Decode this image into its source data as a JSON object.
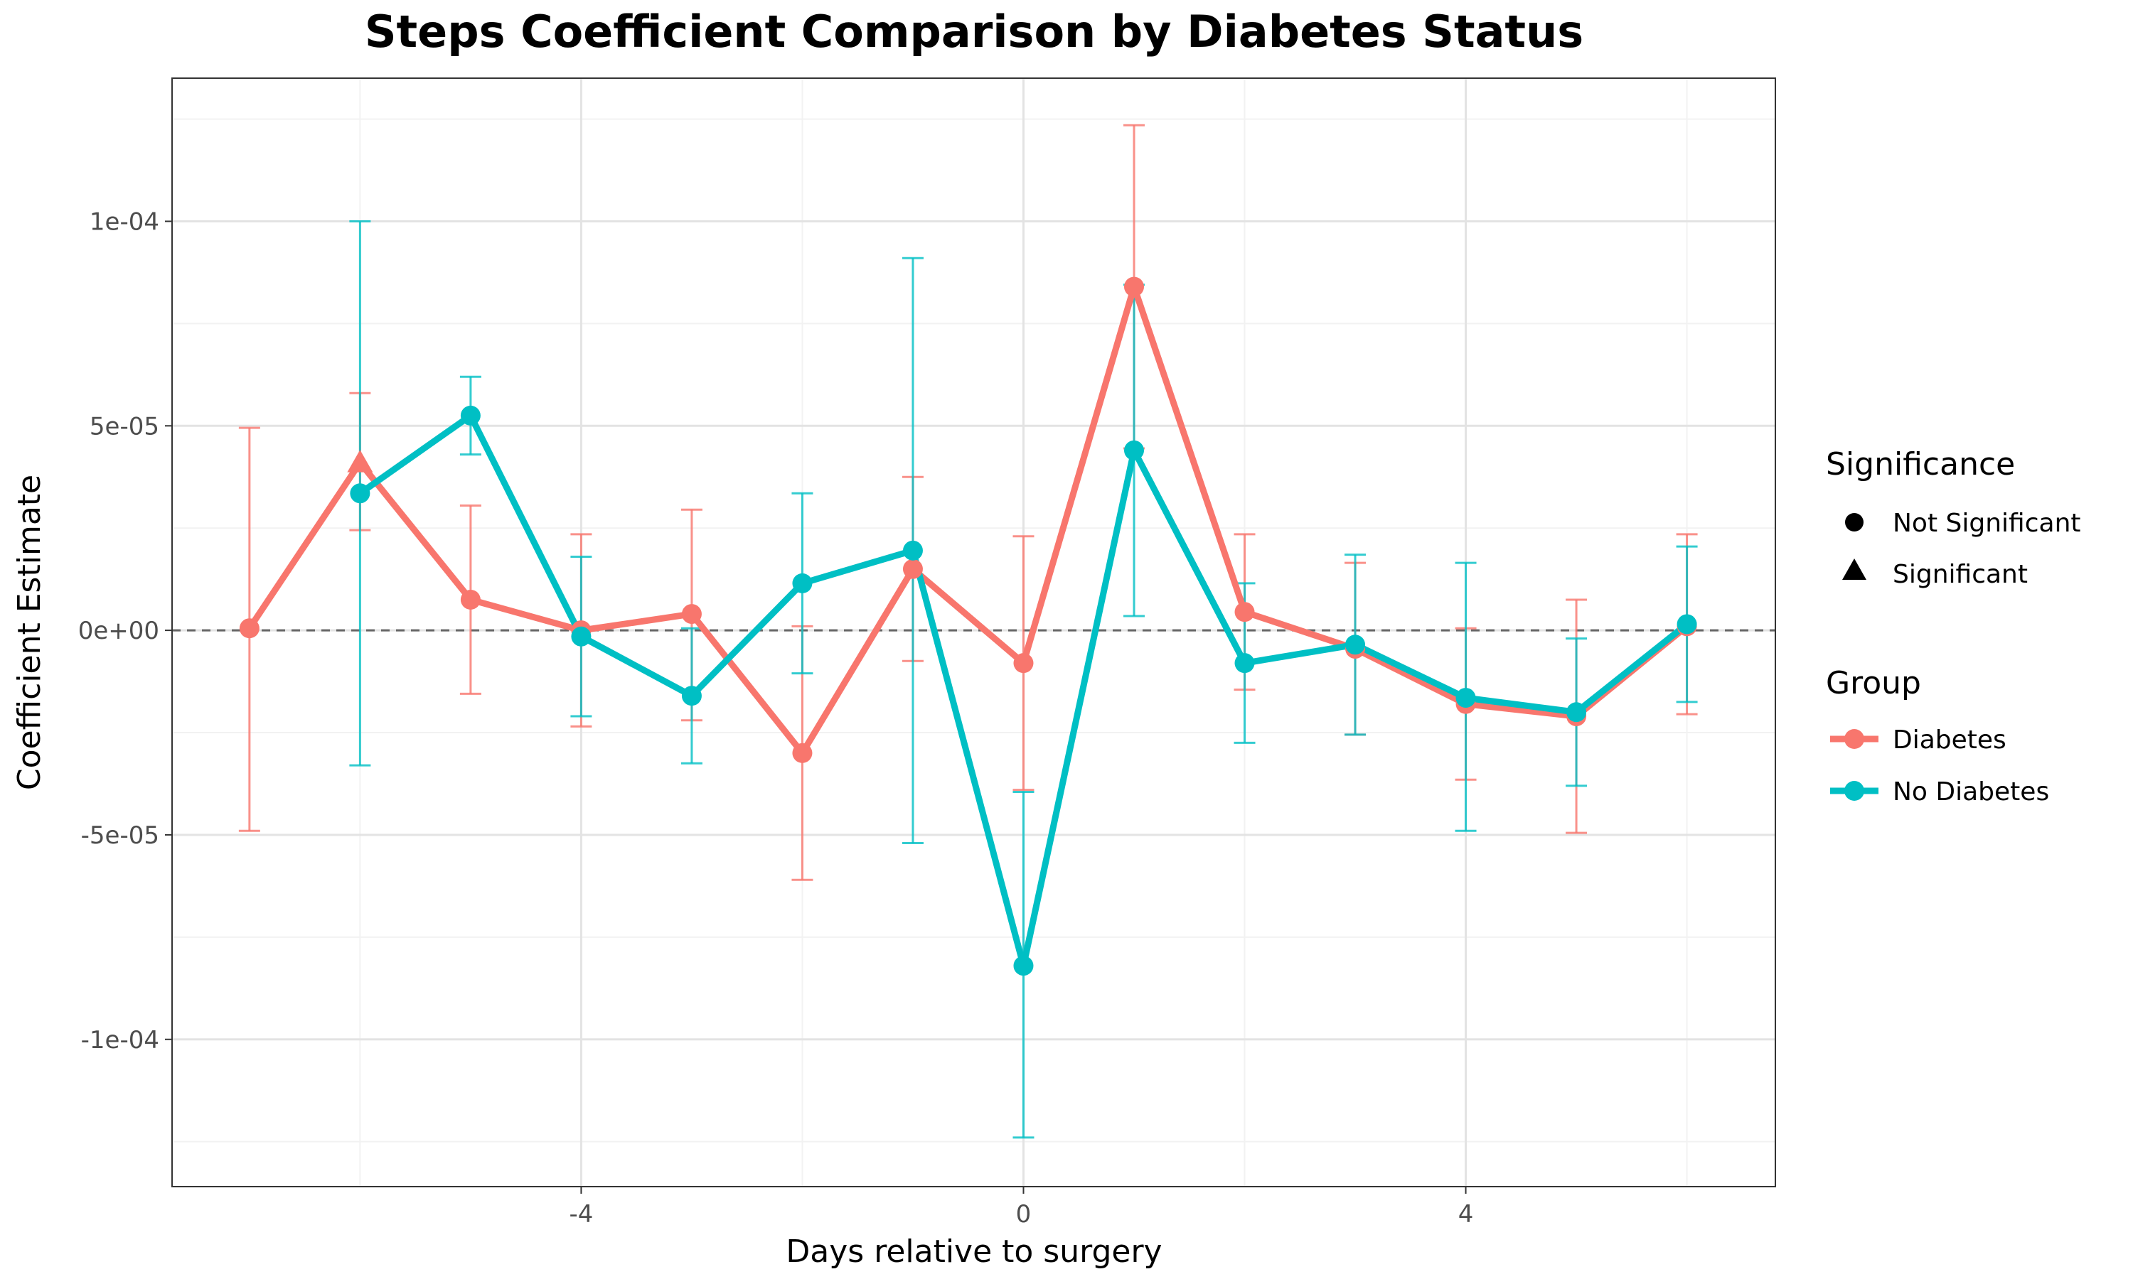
{
  "chart_data": {
    "type": "line",
    "title": "Steps Coefficient Comparison by Diabetes Status",
    "xlabel": "Days relative to surgery",
    "ylabel": "Coefficient Estimate",
    "xlim": [
      -7.7,
      6.8
    ],
    "ylim": [
      -0.000136,
      0.000135
    ],
    "x_ticks": [
      -4,
      0,
      4
    ],
    "x_tick_labels": [
      "-4",
      "0",
      "4"
    ],
    "y_ticks": [
      -0.0001,
      -5e-05,
      0,
      5e-05,
      0.0001
    ],
    "y_tick_labels": [
      "-1e-04",
      "-5e-05",
      "0e+00",
      "5e-05",
      "1e-04"
    ],
    "reference_line": {
      "y": 0,
      "style": "dashed"
    },
    "grid": true,
    "series": [
      {
        "name": "Diabetes",
        "color": "#F8766D",
        "points": [
          {
            "x": -7,
            "y": 5e-07,
            "lower": -4.9e-05,
            "upper": 4.95e-05,
            "significant": false
          },
          {
            "x": -6,
            "y": 4.1e-05,
            "lower": 2.45e-05,
            "upper": 5.8e-05,
            "significant": true
          },
          {
            "x": -5,
            "y": 7.5e-06,
            "lower": -1.55e-05,
            "upper": 3.05e-05,
            "significant": false
          },
          {
            "x": -4,
            "y": 0.0,
            "lower": -2.35e-05,
            "upper": 2.35e-05,
            "significant": false
          },
          {
            "x": -3,
            "y": 4e-06,
            "lower": -2.2e-05,
            "upper": 2.95e-05,
            "significant": false
          },
          {
            "x": -2,
            "y": -3e-05,
            "lower": -6.1e-05,
            "upper": 1e-06,
            "significant": false
          },
          {
            "x": -1,
            "y": 1.5e-05,
            "lower": -7.5e-06,
            "upper": 3.75e-05,
            "significant": false
          },
          {
            "x": 0,
            "y": -8e-06,
            "lower": -3.9e-05,
            "upper": 2.3e-05,
            "significant": false
          },
          {
            "x": 1,
            "y": 8.4e-05,
            "lower": 4.45e-05,
            "upper": 0.0001235,
            "significant": false
          },
          {
            "x": 2,
            "y": 4.5e-06,
            "lower": -1.45e-05,
            "upper": 2.35e-05,
            "significant": false
          },
          {
            "x": 3,
            "y": -4.5e-06,
            "lower": -2.55e-05,
            "upper": 1.65e-05,
            "significant": false
          },
          {
            "x": 4,
            "y": -1.8e-05,
            "lower": -3.65e-05,
            "upper": 5e-07,
            "significant": false
          },
          {
            "x": 5,
            "y": -2.1e-05,
            "lower": -4.95e-05,
            "upper": 7.5e-06,
            "significant": false
          },
          {
            "x": 6,
            "y": 1e-06,
            "lower": -2.05e-05,
            "upper": 2.35e-05,
            "significant": false
          }
        ]
      },
      {
        "name": "No Diabetes",
        "color": "#00BFC4",
        "points": [
          {
            "x": -6,
            "y": 3.35e-05,
            "lower": -3.3e-05,
            "upper": 0.0001,
            "significant": false
          },
          {
            "x": -5,
            "y": 5.25e-05,
            "lower": 4.3e-05,
            "upper": 6.2e-05,
            "significant": false
          },
          {
            "x": -4,
            "y": -1.5e-06,
            "lower": -2.1e-05,
            "upper": 1.8e-05,
            "significant": false
          },
          {
            "x": -3,
            "y": -1.6e-05,
            "lower": -3.25e-05,
            "upper": 5e-07,
            "significant": false
          },
          {
            "x": -2,
            "y": 1.15e-05,
            "lower": -1.05e-05,
            "upper": 3.35e-05,
            "significant": false
          },
          {
            "x": -1,
            "y": 1.95e-05,
            "lower": -5.2e-05,
            "upper": 9.1e-05,
            "significant": false
          },
          {
            "x": 0,
            "y": -8.2e-05,
            "lower": -0.000124,
            "upper": -3.95e-05,
            "significant": false
          },
          {
            "x": 1,
            "y": 4.4e-05,
            "lower": 3.5e-06,
            "upper": 8.45e-05,
            "significant": false
          },
          {
            "x": 2,
            "y": -8e-06,
            "lower": -2.75e-05,
            "upper": 1.15e-05,
            "significant": false
          },
          {
            "x": 3,
            "y": -3.5e-06,
            "lower": -2.55e-05,
            "upper": 1.85e-05,
            "significant": false
          },
          {
            "x": 4,
            "y": -1.65e-05,
            "lower": -4.9e-05,
            "upper": 1.65e-05,
            "significant": false
          },
          {
            "x": 5,
            "y": -2e-05,
            "lower": -3.8e-05,
            "upper": -2e-06,
            "significant": false
          },
          {
            "x": 6,
            "y": 1.5e-06,
            "lower": -1.75e-05,
            "upper": 2.05e-05,
            "significant": false
          }
        ]
      }
    ],
    "legend": {
      "placement": "right",
      "significance": {
        "title": "Significance",
        "items": [
          {
            "label": "Not Significant",
            "shape": "circle"
          },
          {
            "label": "Significant",
            "shape": "triangle"
          }
        ]
      },
      "group": {
        "title": "Group",
        "items": [
          {
            "label": "Diabetes",
            "color": "#F8766D"
          },
          {
            "label": "No Diabetes",
            "color": "#00BFC4"
          }
        ]
      }
    }
  }
}
